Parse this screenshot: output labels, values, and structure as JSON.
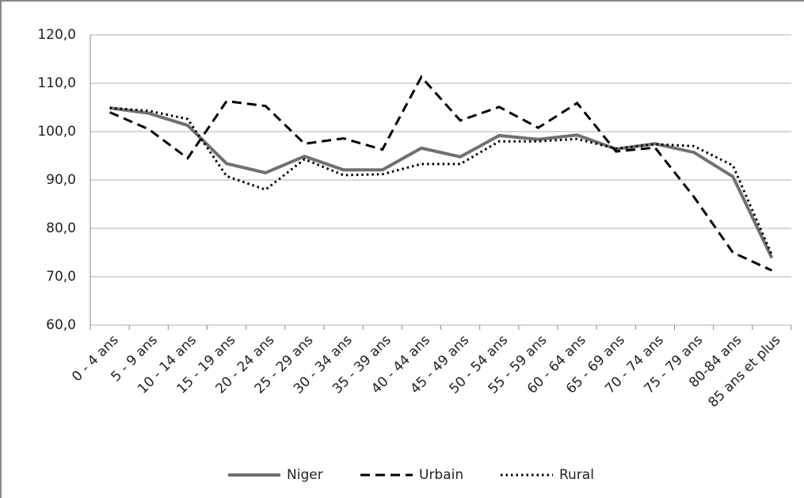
{
  "chart_data": {
    "type": "line",
    "categories": [
      "0 - 4 ans",
      "5 - 9 ans",
      "10 - 14 ans",
      "15 - 19 ans",
      "20 - 24 ans",
      "25 - 29 ans",
      "30 - 34 ans",
      "35 - 39 ans",
      "40 - 44 ans",
      "45 - 49 ans",
      "50 - 54 ans",
      "55 - 59 ans",
      "60 - 64 ans",
      "65 - 69 ans",
      "70 - 74 ans",
      "75 - 79 ans",
      "80-84 ans",
      "85 ans et plus"
    ],
    "series": [
      {
        "name": "Niger",
        "color": "#707070",
        "values": [
          104.9,
          103.8,
          101.3,
          93.4,
          91.5,
          94.9,
          92.1,
          92.1,
          96.6,
          94.8,
          99.2,
          98.4,
          99.3,
          96.4,
          97.5,
          95.7,
          90.7,
          73.9
        ]
      },
      {
        "name": "Urbain",
        "color": "#000000",
        "values": [
          104.0,
          100.5,
          94.5,
          106.3,
          105.3,
          97.5,
          98.6,
          96.3,
          111.3,
          102.3,
          105.1,
          100.8,
          105.9,
          95.9,
          96.7,
          86.5,
          75.0,
          71.3
        ]
      },
      {
        "name": "Rural",
        "color": "#000000",
        "values": [
          104.9,
          104.3,
          102.6,
          90.8,
          88.0,
          94.3,
          91.0,
          91.2,
          93.3,
          93.3,
          98.0,
          98.0,
          98.5,
          96.5,
          97.4,
          97.0,
          93.0,
          74.5
        ]
      }
    ],
    "ylim": [
      60,
      120
    ],
    "yticks": [
      {
        "value": 60,
        "label": "60,0"
      },
      {
        "value": 70,
        "label": "70,0"
      },
      {
        "value": 80,
        "label": "80,0"
      },
      {
        "value": 90,
        "label": "90,0"
      },
      {
        "value": 100,
        "label": "100,0"
      },
      {
        "value": 110,
        "label": "110,0"
      },
      {
        "value": 120,
        "label": "120,0"
      }
    ],
    "grid": true,
    "legend": "bottom"
  }
}
